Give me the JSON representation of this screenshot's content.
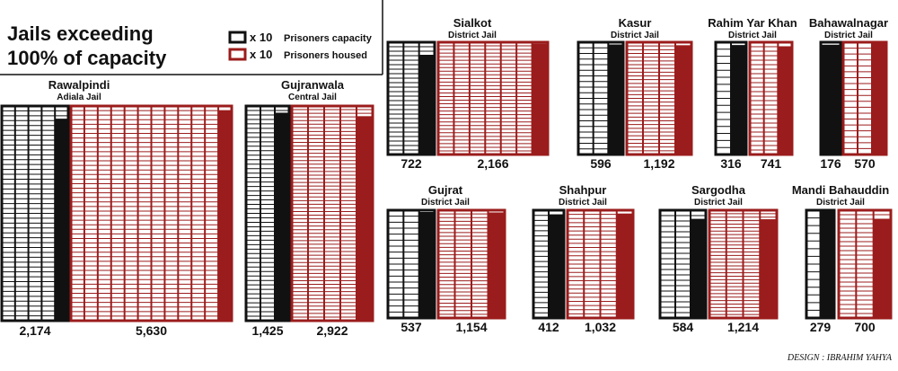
{
  "title": {
    "line1": "Jails exceeding",
    "line2": "100% of capacity"
  },
  "legend": [
    {
      "key": "capacity",
      "multiplier": "x 10",
      "label": "Prisoners capacity",
      "color": "#111111"
    },
    {
      "key": "housed",
      "multiplier": "x 10",
      "label": "Prisoners housed",
      "color": "#9b1c1c"
    }
  ],
  "credit": "DESIGN : IBRAHIM YAHYA",
  "colors": {
    "capacity": "#111111",
    "housed": "#9b1c1c",
    "background": "#ffffff"
  },
  "chart_data": {
    "type": "bar",
    "unit_note": "each cell = 10 prisoners",
    "categories": [
      "Rawalpindi",
      "Gujranwala",
      "Sialkot",
      "Kasur",
      "Rahim Yar Khan",
      "Bahawalnagar",
      "Gujrat",
      "Shahpur",
      "Sargodha",
      "Mandi Bahauddin"
    ],
    "series": [
      {
        "name": "Prisoners capacity",
        "values": [
          2174,
          1425,
          722,
          596,
          316,
          176,
          537,
          412,
          584,
          279
        ]
      },
      {
        "name": "Prisoners housed",
        "values": [
          5630,
          2922,
          2166,
          1192,
          741,
          570,
          1154,
          1032,
          1214,
          700
        ]
      }
    ],
    "jails": [
      {
        "name": "Rawalpindi",
        "subtitle": "Adiala Jail",
        "capacity": 2174,
        "housed": 5630,
        "capacity_label": "2,174",
        "housed_label": "5,630"
      },
      {
        "name": "Gujranwala",
        "subtitle": "Central Jail",
        "capacity": 1425,
        "housed": 2922,
        "capacity_label": "1,425",
        "housed_label": "2,922"
      },
      {
        "name": "Sialkot",
        "subtitle": "District Jail",
        "capacity": 722,
        "housed": 2166,
        "capacity_label": "722",
        "housed_label": "2,166"
      },
      {
        "name": "Kasur",
        "subtitle": "District Jail",
        "capacity": 596,
        "housed": 1192,
        "capacity_label": "596",
        "housed_label": "1,192"
      },
      {
        "name": "Rahim Yar Khan",
        "subtitle": "District Jail",
        "capacity": 316,
        "housed": 741,
        "capacity_label": "316",
        "housed_label": "741"
      },
      {
        "name": "Bahawalnagar",
        "subtitle": "District Jail",
        "capacity": 176,
        "housed": 570,
        "capacity_label": "176",
        "housed_label": "570"
      },
      {
        "name": "Gujrat",
        "subtitle": "District Jail",
        "capacity": 537,
        "housed": 1154,
        "capacity_label": "537",
        "housed_label": "1,154"
      },
      {
        "name": "Shahpur",
        "subtitle": "District Jail",
        "capacity": 412,
        "housed": 1032,
        "capacity_label": "412",
        "housed_label": "1,032"
      },
      {
        "name": "Sargodha",
        "subtitle": "District Jail",
        "capacity": 584,
        "housed": 1214,
        "capacity_label": "584",
        "housed_label": "1,214"
      },
      {
        "name": "Mandi Bahauddin",
        "subtitle": "District Jail",
        "capacity": 279,
        "housed": 700,
        "capacity_label": "279",
        "housed_label": "700"
      }
    ]
  }
}
